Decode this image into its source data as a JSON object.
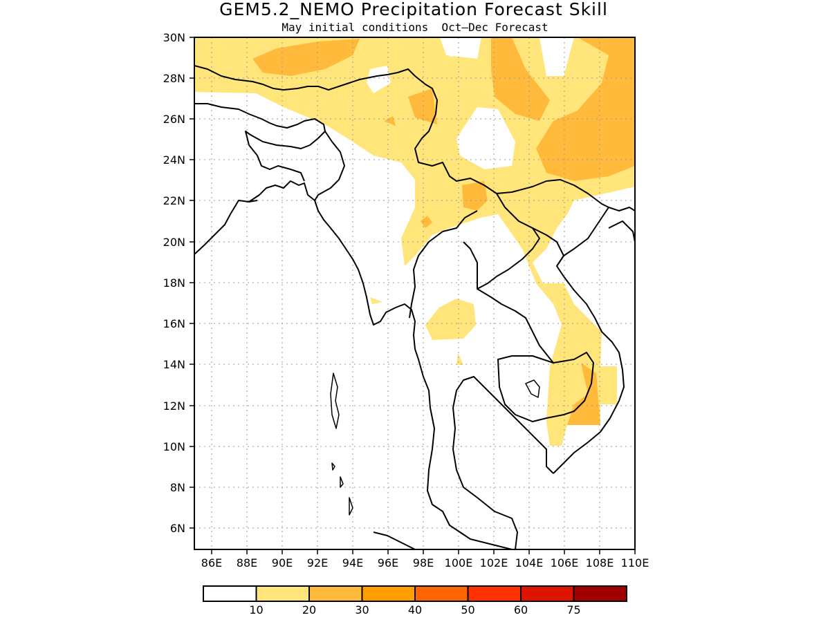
{
  "title": "GEM5.2_NEMO Precipitation Forecast Skill",
  "subtitle": "May initial conditions  Oct—Dec Forecast",
  "map": {
    "lon_range": [
      85,
      110
    ],
    "lat_range": [
      5,
      30
    ],
    "lon_ticks": [
      "86E",
      "88E",
      "90E",
      "92E",
      "94E",
      "96E",
      "98E",
      "100E",
      "102E",
      "104E",
      "106E",
      "108E",
      "110E"
    ],
    "lat_ticks": [
      "30N",
      "28N",
      "26N",
      "24N",
      "22N",
      "20N",
      "18N",
      "16N",
      "14N",
      "12N",
      "10N",
      "8N",
      "6N"
    ],
    "gridlines": "dotted"
  },
  "colorbar": {
    "colors": [
      "#ffffff",
      "#ffe57a",
      "#ffba3c",
      "#ff9e00",
      "#ff6400",
      "#ff3200",
      "#dc1400",
      "#a00000"
    ],
    "labels": [
      "10",
      "20",
      "30",
      "40",
      "50",
      "60",
      "75"
    ]
  }
}
